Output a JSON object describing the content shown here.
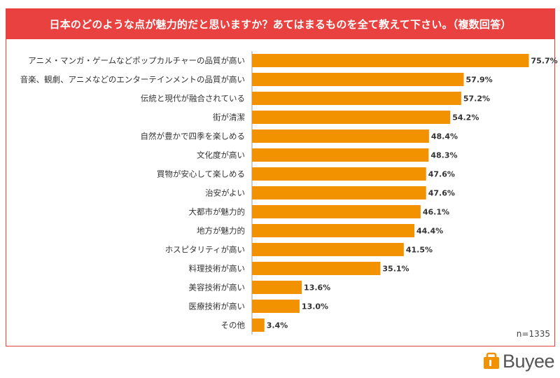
{
  "title": "日本のどのような点が魅力的だと思いますか？あてはまるものを全て教えて下さい。（複数回答）",
  "sample_size": "n=1335",
  "brand": {
    "name": "Buyee",
    "accent": "#f39200",
    "frame_color": "#e8413f"
  },
  "chart_data": {
    "type": "bar",
    "orientation": "horizontal",
    "categories": [
      "アニメ・マンガ・ゲームなどポップカルチャーの品質が高い",
      "音楽、観劇、アニメなどのエンターテインメントの品質が高い",
      "伝統と現代が融合されている",
      "街が清潔",
      "自然が豊かで四季を楽しめる",
      "文化度が高い",
      "買物が安心して楽しめる",
      "治安がよい",
      "大都市が魅力的",
      "地方が魅力的",
      "ホスピタリティが高い",
      "料理技術が高い",
      "美容技術が高い",
      "医療技術が高い",
      "その他"
    ],
    "values": [
      75.7,
      57.9,
      57.2,
      54.2,
      48.4,
      48.3,
      47.6,
      47.6,
      46.1,
      44.4,
      41.5,
      35.1,
      13.6,
      13.0,
      3.4
    ],
    "value_labels": [
      "75.7%",
      "57.9%",
      "57.2%",
      "54.2%",
      "48.4%",
      "48.3%",
      "47.6%",
      "47.6%",
      "46.1%",
      "44.4%",
      "41.5%",
      "35.1%",
      "13.6%",
      "13.0%",
      "3.4%"
    ],
    "xlim": [
      0,
      80
    ],
    "bar_color": "#f39200",
    "grid": false,
    "legend": "none"
  }
}
